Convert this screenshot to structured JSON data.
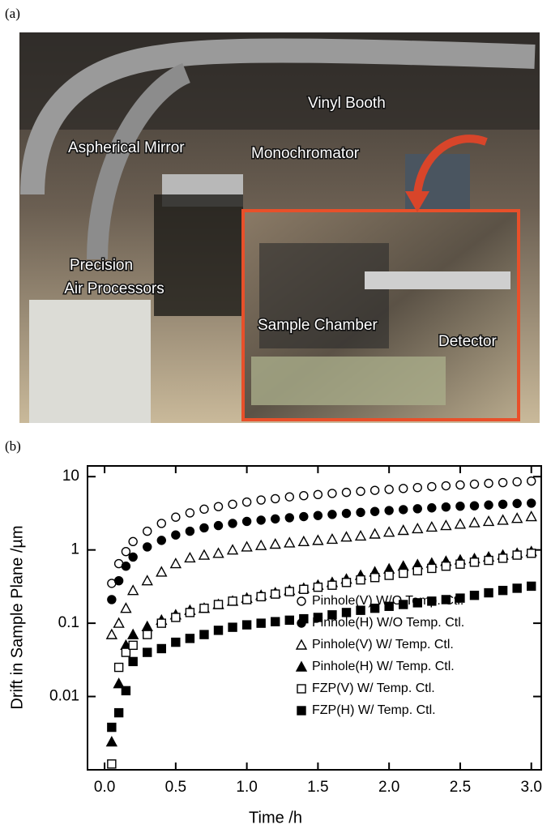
{
  "figure": {
    "panel_a": {
      "panel_label": "(a)",
      "labels": [
        "Vinyl Booth",
        "Aspherical Mirror",
        "Monochromator",
        "Precision",
        "Air Processors",
        "Sample Chamber",
        "Detector"
      ]
    }
  },
  "chart_data": {
    "type": "scatter",
    "panel_label": "(b)",
    "x_label": "Time /h",
    "y_label": "Drift in Sample Plane /µm",
    "x": [
      0.05,
      0.1,
      0.15,
      0.2,
      0.3,
      0.4,
      0.5,
      0.6,
      0.7,
      0.8,
      0.9,
      1.0,
      1.1,
      1.2,
      1.3,
      1.4,
      1.5,
      1.6,
      1.7,
      1.8,
      1.9,
      2.0,
      2.1,
      2.2,
      2.3,
      2.4,
      2.5,
      2.6,
      2.7,
      2.8,
      2.9,
      3.0
    ],
    "series": [
      {
        "name": "Pinhole(V) W/O Temp. Ctl.",
        "color": "#000000",
        "marker": "circle",
        "filled": false,
        "values": [
          0.35,
          0.65,
          0.95,
          1.3,
          1.8,
          2.3,
          2.8,
          3.2,
          3.6,
          3.9,
          4.2,
          4.5,
          4.8,
          5.0,
          5.3,
          5.5,
          5.7,
          5.9,
          6.1,
          6.3,
          6.5,
          6.7,
          6.9,
          7.1,
          7.3,
          7.5,
          7.7,
          7.9,
          8.1,
          8.3,
          8.5,
          8.7
        ]
      },
      {
        "name": "Pinhole(H) W/O Temp. Ctl.",
        "color": "#000000",
        "marker": "circle",
        "filled": true,
        "values": [
          0.21,
          0.38,
          0.6,
          0.8,
          1.1,
          1.35,
          1.6,
          1.8,
          2.0,
          2.15,
          2.3,
          2.45,
          2.55,
          2.65,
          2.75,
          2.85,
          2.95,
          3.05,
          3.15,
          3.25,
          3.35,
          3.45,
          3.55,
          3.65,
          3.75,
          3.85,
          3.95,
          4.0,
          4.1,
          4.2,
          4.3,
          4.35
        ]
      },
      {
        "name": "Pinhole(V) W/ Temp. Ctl.",
        "color": "#000000",
        "marker": "triangle",
        "filled": false,
        "values": [
          0.07,
          0.1,
          0.16,
          0.28,
          0.38,
          0.5,
          0.65,
          0.78,
          0.85,
          0.9,
          1.0,
          1.1,
          1.15,
          1.2,
          1.25,
          1.3,
          1.35,
          1.4,
          1.5,
          1.55,
          1.65,
          1.75,
          1.85,
          1.95,
          2.05,
          2.15,
          2.25,
          2.35,
          2.45,
          2.55,
          2.7,
          2.85
        ]
      },
      {
        "name": "Pinhole(H) W/ Temp. Ctl.",
        "color": "#000000",
        "marker": "triangle",
        "filled": true,
        "values": [
          0.0024,
          0.015,
          0.05,
          0.07,
          0.09,
          0.11,
          0.13,
          0.15,
          0.16,
          0.18,
          0.2,
          0.22,
          0.24,
          0.26,
          0.28,
          0.3,
          0.33,
          0.36,
          0.4,
          0.45,
          0.5,
          0.55,
          0.6,
          0.63,
          0.66,
          0.7,
          0.73,
          0.76,
          0.8,
          0.85,
          0.9,
          0.95
        ]
      },
      {
        "name": "FZP(V) W/ Temp. Ctl.",
        "color": "#000000",
        "marker": "square",
        "filled": false,
        "values": [
          0.0012,
          0.025,
          0.04,
          0.05,
          0.07,
          0.1,
          0.12,
          0.14,
          0.16,
          0.18,
          0.2,
          0.21,
          0.23,
          0.25,
          0.27,
          0.29,
          0.31,
          0.33,
          0.36,
          0.39,
          0.42,
          0.45,
          0.48,
          0.52,
          0.56,
          0.6,
          0.64,
          0.68,
          0.72,
          0.77,
          0.85,
          0.9
        ]
      },
      {
        "name": "FZP(H) W/ Temp. Ctl.",
        "color": "#000000",
        "marker": "square",
        "filled": true,
        "values": [
          0.0038,
          0.006,
          0.012,
          0.03,
          0.04,
          0.045,
          0.055,
          0.062,
          0.07,
          0.08,
          0.088,
          0.095,
          0.1,
          0.105,
          0.11,
          0.115,
          0.12,
          0.13,
          0.14,
          0.15,
          0.16,
          0.17,
          0.18,
          0.19,
          0.2,
          0.21,
          0.22,
          0.24,
          0.26,
          0.28,
          0.3,
          0.32
        ]
      }
    ],
    "xlim": [
      -0.12,
      3.07
    ],
    "xticks": [
      {
        "value": 0,
        "label": "0.0"
      },
      0.5,
      {
        "value": 1,
        "label": "1.0"
      },
      1.5,
      {
        "value": 2,
        "label": "2.0"
      },
      2.5,
      {
        "value": 3,
        "label": "3.0"
      }
    ],
    "ylim": [
      0.001,
      14
    ],
    "yscale": "log",
    "yticks": [
      0.01,
      0.1,
      1,
      10
    ],
    "legend": "lower right",
    "grid": false
  }
}
